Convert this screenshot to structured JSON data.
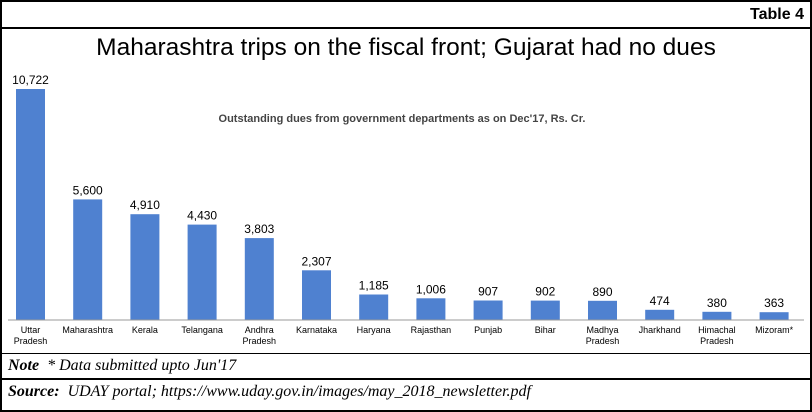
{
  "header": {
    "table_label": "Table 4",
    "title": "Maharashtra trips on the fiscal front; Gujarat  had no dues"
  },
  "chart_data": {
    "type": "bar",
    "subtitle": "Outstanding dues from government departments as on Dec'17, Rs. Cr.",
    "categories": [
      [
        "Uttar",
        "Pradesh"
      ],
      [
        "Maharashtra"
      ],
      [
        "Kerala"
      ],
      [
        "Telangana"
      ],
      [
        "Andhra",
        "Pradesh"
      ],
      [
        "Karnataka"
      ],
      [
        "Haryana"
      ],
      [
        "Rajasthan"
      ],
      [
        "Punjab"
      ],
      [
        "Bihar"
      ],
      [
        "Madhya",
        "Pradesh"
      ],
      [
        "Jharkhand"
      ],
      [
        "Himachal",
        "Pradesh"
      ],
      [
        "Mizoram*"
      ]
    ],
    "values": [
      10722,
      5600,
      4910,
      4430,
      3803,
      2307,
      1185,
      1006,
      907,
      902,
      890,
      474,
      380,
      363
    ],
    "value_labels": [
      "10,722",
      "5,600",
      "4,910",
      "4,430",
      "3,803",
      "2,307",
      "1,185",
      "1,006",
      "907",
      "902",
      "890",
      "474",
      "380",
      "363"
    ],
    "bar_color": "#4f81d0",
    "ylim": [
      0,
      10722
    ],
    "grid": false
  },
  "footer": {
    "note_label": "Note",
    "note_text": "* Data submitted upto Jun'17",
    "source_label": "Source:",
    "source_text": "UDAY portal; https://www.uday.gov.in/images/may_2018_newsletter.pdf"
  }
}
